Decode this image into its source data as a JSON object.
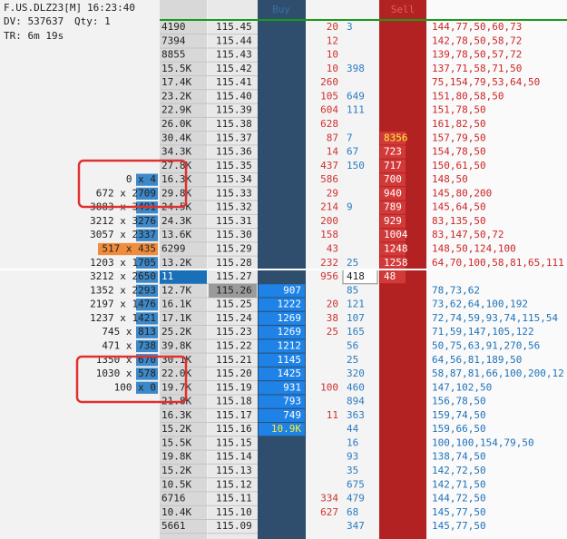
{
  "header": {
    "symbol": "F.US.DLZ23[M]",
    "time": "16:23:40",
    "dv": "DV: 537637",
    "qty": "Qty: 1",
    "tr": "TR: 6m 19s"
  },
  "columns": {
    "buy": "Buy",
    "sell": "Sell"
  },
  "rows": [
    {
      "vol": "4190",
      "price": "115.45",
      "bid": "20",
      "ask": "3",
      "trades": "144,77,50,60,73"
    },
    {
      "vol": "7394",
      "price": "115.44",
      "bid": "12",
      "trades": "142,78,50,58,72"
    },
    {
      "vol": "8855",
      "price": "115.43",
      "bid": "10",
      "trades": "139,78,50,57,72"
    },
    {
      "vol": "15.5K",
      "price": "115.42",
      "bid": "10",
      "ask": "398",
      "trades": "137,71,58,71,50"
    },
    {
      "vol": "17.4K",
      "price": "115.41",
      "bid": "260",
      "trades": "75,154,79,53,64,50"
    },
    {
      "vol": "23.2K",
      "price": "115.40",
      "bid": "105",
      "ask": "649",
      "trades": "151,80,58,50"
    },
    {
      "vol": "22.9K",
      "price": "115.39",
      "bid": "604",
      "ask": "111",
      "trades": "151,78,50"
    },
    {
      "vol": "26.0K",
      "price": "115.38",
      "bid": "628",
      "trades": "161,82,50"
    },
    {
      "vol": "30.4K",
      "price": "115.37",
      "bid": "87",
      "ask": "7",
      "sell": "8356",
      "trades": "157,79,50"
    },
    {
      "vol": "34.3K",
      "price": "115.36",
      "bid": "14",
      "ask": "67",
      "sell": "723",
      "trades": "154,78,50"
    },
    {
      "vol": "27.8K",
      "price": "115.35",
      "bid": "437",
      "ask": "150",
      "sell": "717",
      "trades": "150,61,50"
    },
    {
      "vol": "16.3K",
      "price": "115.34",
      "bid": "586",
      "sell": "700",
      "trades": "148,50",
      "ratio": "0 x 4"
    },
    {
      "vol": "29.8K",
      "price": "115.33",
      "bid": "29",
      "sell": "940",
      "trades": "145,80,200",
      "ratio": "672 x 2709"
    },
    {
      "vol": "24.5K",
      "price": "115.32",
      "bid": "214",
      "ask": "9",
      "sell": "789",
      "trades": "145,64,50",
      "ratio": "3883 x 3491"
    },
    {
      "vol": "24.3K",
      "price": "115.31",
      "bid": "200",
      "sell": "929",
      "trades": "83,135,50",
      "ratio": "3212 x 3276"
    },
    {
      "vol": "13.6K",
      "price": "115.30",
      "bid": "158",
      "sell": "1004",
      "trades": "83,147,50,72",
      "ratio": "3057 x 2337"
    },
    {
      "vol": "6299",
      "price": "115.29",
      "bid": "43",
      "sell": "1248",
      "trades": "148,50,124,100",
      "ratio": "517 x 435"
    },
    {
      "vol": "13.2K",
      "price": "115.28",
      "bid": "232",
      "ask": "25",
      "sell": "1258",
      "trades": "64,70,100,58,81,65,111",
      "ratio": "1203 x 1705"
    },
    {
      "vol": "11",
      "price": "115.27",
      "bid": "956",
      "ask": "418",
      "sell": "48",
      "ratio": "3212 x 2650"
    },
    {
      "vol": "12.7K",
      "price": "115.26",
      "buy": "907",
      "ask": "85",
      "trades": "78,73,62",
      "ratio": "1352 x 2293"
    },
    {
      "vol": "16.1K",
      "price": "115.25",
      "buy": "1222",
      "bid": "20",
      "ask": "121",
      "trades": "73,62,64,100,192",
      "ratio": "2197 x 1476"
    },
    {
      "vol": "17.1K",
      "price": "115.24",
      "buy": "1269",
      "bid": "38",
      "ask": "107",
      "trades": "72,74,59,93,74,115,54",
      "ratio": "1237 x 1421"
    },
    {
      "vol": "25.2K",
      "price": "115.23",
      "buy": "1269",
      "bid": "25",
      "ask": "165",
      "trades": "71,59,147,105,122",
      "ratio": "745 x 813"
    },
    {
      "vol": "39.8K",
      "price": "115.22",
      "buy": "1212",
      "ask": "56",
      "trades": "50,75,63,91,270,56",
      "ratio": "471 x 738"
    },
    {
      "vol": "30.1K",
      "price": "115.21",
      "buy": "1145",
      "ask": "25",
      "trades": "64,56,81,189,50",
      "ratio": "1350 x 670"
    },
    {
      "vol": "22.0K",
      "price": "115.20",
      "buy": "1425",
      "ask": "320",
      "trades": "58,87,81,66,100,200,12",
      "ratio": "1030 x 578"
    },
    {
      "vol": "19.7K",
      "price": "115.19",
      "buy": "931",
      "bid": "100",
      "ask": "460",
      "trades": "147,102,50",
      "ratio": "100 x 0"
    },
    {
      "vol": "21.8K",
      "price": "115.18",
      "buy": "793",
      "ask": "894",
      "trades": "156,78,50"
    },
    {
      "vol": "16.3K",
      "price": "115.17",
      "buy": "749",
      "bid": "11",
      "ask": "363",
      "trades": "159,74,50"
    },
    {
      "vol": "15.2K",
      "price": "115.16",
      "buy": "10.9K",
      "ask": "44",
      "trades": "159,66,50"
    },
    {
      "vol": "15.5K",
      "price": "115.15",
      "ask": "16",
      "trades": "100,100,154,79,50"
    },
    {
      "vol": "19.8K",
      "price": "115.14",
      "ask": "93",
      "trades": "138,74,50"
    },
    {
      "vol": "15.2K",
      "price": "115.13",
      "ask": "35",
      "trades": "142,72,50"
    },
    {
      "vol": "10.5K",
      "price": "115.12",
      "ask": "675",
      "trades": "142,71,50"
    },
    {
      "vol": "6716",
      "price": "115.11",
      "bid": "334",
      "ask": "479",
      "trades": "144,72,50"
    },
    {
      "vol": "10.4K",
      "price": "115.10",
      "bid": "627",
      "ask": "68",
      "trades": "145,77,50"
    },
    {
      "vol": "5661",
      "price": "115.09",
      "ask": "347",
      "trades": "145,77,50"
    }
  ]
}
